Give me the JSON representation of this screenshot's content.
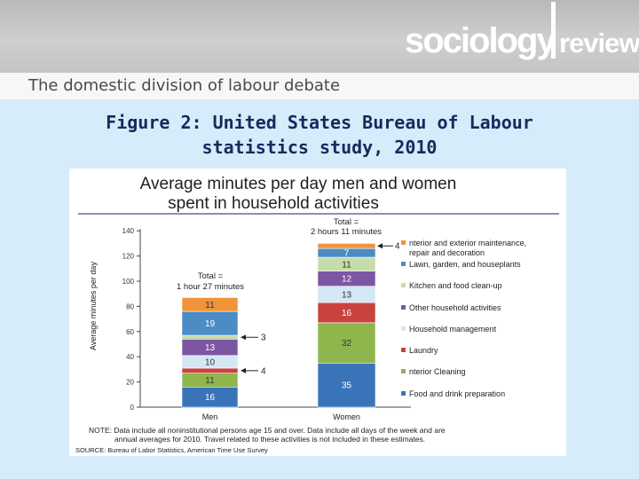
{
  "header": {
    "brand_left": "sociology",
    "brand_right": "review",
    "subtitle": "The domestic division of labour debate"
  },
  "figure_title_line1": "Figure 2: United States Bureau of Labour",
  "figure_title_line2": "statistics study, 2010",
  "chart_data": {
    "type": "bar",
    "stacked": true,
    "title_line1": "Average minutes per day men and women",
    "title_line2": "spent in household activities",
    "xlabel": "",
    "ylabel": "Average minutes per day",
    "ylim": [
      0,
      140
    ],
    "yticks": [
      0,
      20,
      40,
      60,
      80,
      100,
      120,
      140
    ],
    "categories": [
      "Men",
      "Women"
    ],
    "series": [
      {
        "name": "Food and drink preparation",
        "color": "#3a74b8",
        "values": [
          16,
          35
        ]
      },
      {
        "name": "Interior Cleaning",
        "color": "#8fb64c",
        "values": [
          11,
          32
        ]
      },
      {
        "name": "Laundry",
        "color": "#c8433d",
        "values": [
          4,
          16
        ]
      },
      {
        "name": "Household management",
        "color": "#d3e7f4",
        "values": [
          10,
          13
        ]
      },
      {
        "name": "Other household activities",
        "color": "#7c56a2",
        "values": [
          13,
          12
        ]
      },
      {
        "name": "Kitchen and food clean-up",
        "color": "#c6dcaa",
        "values": [
          3,
          11
        ]
      },
      {
        "name": "Lawn, garden, and houseplants",
        "color": "#4a8cc5",
        "values": [
          19,
          7
        ]
      },
      {
        "name": "Interior and exterior maintenance, repair and decoration",
        "color": "#f0943a",
        "values": [
          11,
          4
        ]
      }
    ],
    "legend_labels": [
      "nterior and exterior maintenance,\nrepair and decoration",
      "Lawn, garden, and houseplants",
      "Kitchen and food clean-up",
      "Other household activities",
      "Household management",
      "Laundry",
      "nterior Cleaning",
      "Food and drink preparation"
    ],
    "bar_labels": [
      [
        "16",
        "11",
        "",
        "10",
        "13",
        "",
        "19",
        "11"
      ],
      [
        "35",
        "32",
        "16",
        "13",
        "12",
        "11",
        "7",
        ""
      ]
    ],
    "outside_labels": {
      "men": [
        {
          "series": 2,
          "text": "4"
        },
        {
          "series": 5,
          "text": "3"
        }
      ],
      "women": [
        {
          "series": 7,
          "text": "4"
        }
      ]
    },
    "totals": [
      {
        "line1": "Total =",
        "line2": "1 hour 27 minutes"
      },
      {
        "line1": "Total =",
        "line2": "2 hours 11 minutes"
      }
    ],
    "note": "NOTE: Data include all noninstitutional persons age 15 and over. Data include all days of the week and are annual averages for 2010. Travel related to these activities is not included in these estimates.",
    "note_line1": "NOTE: Data include all noninstitutional persons age 15 and over. Data include all days of the week and are",
    "note_line2": "annual averages for 2010. Travel related to these activities is not included in these estimates.",
    "source": "SOURCE: Bureau of Labor Statistics, American Time Use Survey"
  }
}
